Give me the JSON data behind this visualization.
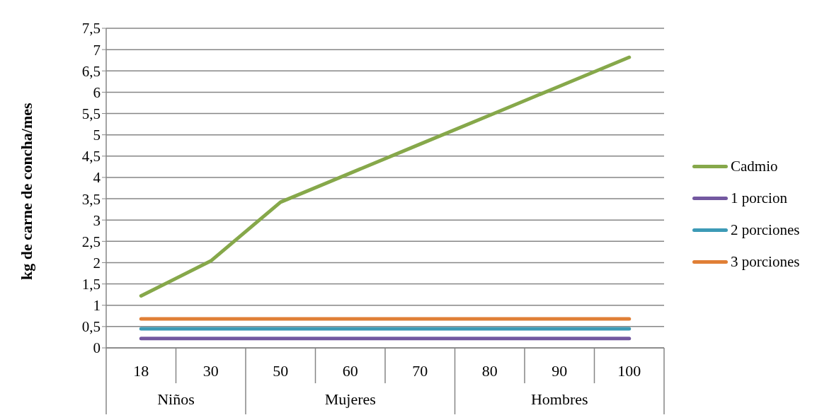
{
  "chart_data": {
    "type": "line",
    "ylabel": "kg de carne de concha/mes",
    "categories": [
      "18",
      "30",
      "50",
      "60",
      "70",
      "80",
      "90",
      "100"
    ],
    "series": [
      {
        "name": "Cadmio",
        "color": "#86a84a",
        "values": [
          1.22,
          2.04,
          3.42,
          4.1,
          4.78,
          5.46,
          6.14,
          6.82
        ]
      },
      {
        "name": "1 porcion",
        "color": "#7358a0",
        "values": [
          0.22,
          0.22,
          0.22,
          0.22,
          0.22,
          0.22,
          0.22,
          0.22
        ]
      },
      {
        "name": "2 porciones",
        "color": "#3d9ab6",
        "values": [
          0.45,
          0.45,
          0.45,
          0.45,
          0.45,
          0.45,
          0.45,
          0.45
        ]
      },
      {
        "name": "3 porciones",
        "color": "#e07f36",
        "values": [
          0.68,
          0.68,
          0.68,
          0.68,
          0.68,
          0.68,
          0.68,
          0.68
        ]
      }
    ],
    "ylim": [
      0,
      7.5
    ],
    "yticks": [
      0,
      {
        "value": 0.5,
        "label": "0,5"
      },
      1,
      {
        "value": 1.5,
        "label": "1,5"
      },
      2,
      {
        "value": 2.5,
        "label": "2,5"
      },
      3,
      {
        "value": 3.5,
        "label": "3,5"
      },
      4,
      {
        "value": 4.5,
        "label": "4,5"
      },
      5,
      {
        "value": 5.5,
        "label": "5,5"
      },
      6,
      {
        "value": 6.5,
        "label": "6,5"
      },
      7,
      {
        "value": 7.5,
        "label": "7,5"
      }
    ],
    "grid": "y",
    "legend": "right",
    "marker": "none",
    "line_style": "solid",
    "annotations": [
      "Niños",
      "Mujeres",
      "Hombres"
    ]
  }
}
